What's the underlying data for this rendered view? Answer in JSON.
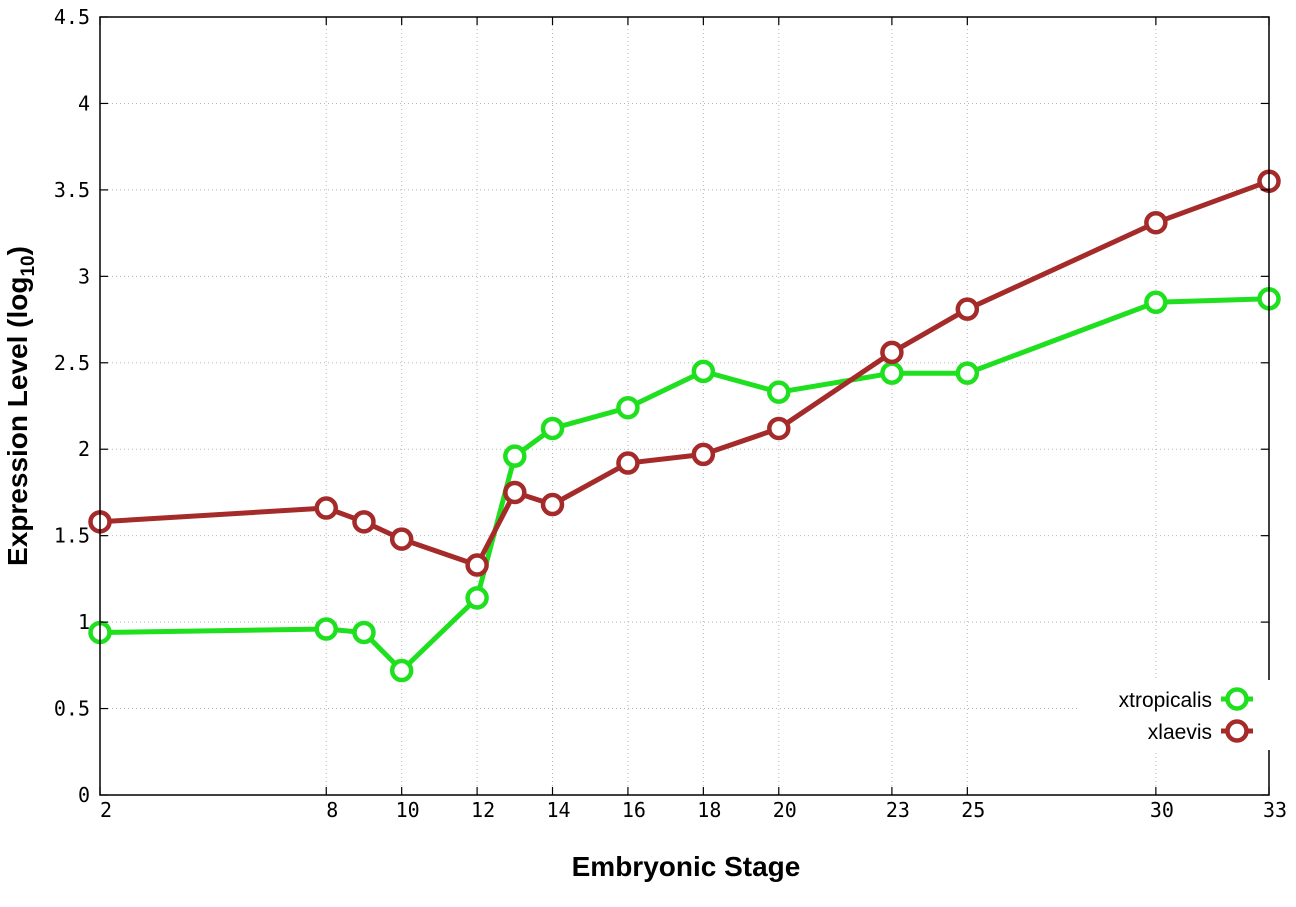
{
  "chart_data": {
    "type": "line",
    "title": "",
    "xlabel": "Embryonic Stage",
    "ylabel": "Expression Level (log",
    "ylabel_subscript": "10",
    "ylabel_suffix": ")",
    "x": [
      2,
      8,
      9,
      10,
      12,
      13,
      14,
      16,
      18,
      20,
      23,
      25,
      30,
      33
    ],
    "x_tick_labels": [
      "2",
      "8",
      "10",
      "12",
      "14",
      "16",
      "18",
      "20",
      "23",
      "25",
      "30",
      "33"
    ],
    "x_tick_values": [
      2,
      8,
      10,
      12,
      14,
      16,
      18,
      20,
      23,
      25,
      30,
      33
    ],
    "xlim": [
      2,
      33
    ],
    "y_tick_labels": [
      "0",
      "0.5",
      "1",
      "1.5",
      "2",
      "2.5",
      "3",
      "3.5",
      "4",
      "4.5"
    ],
    "y_tick_values": [
      0,
      0.5,
      1,
      1.5,
      2,
      2.5,
      3,
      3.5,
      4,
      4.5
    ],
    "ylim": [
      0,
      4.5
    ],
    "grid": true,
    "legend_position": "bottom-right",
    "series": [
      {
        "name": "xtropicalis",
        "color": "#1fe01f",
        "values": [
          0.94,
          0.96,
          0.94,
          0.72,
          1.14,
          1.96,
          2.12,
          2.24,
          2.45,
          2.33,
          2.44,
          2.44,
          2.85,
          2.87
        ]
      },
      {
        "name": "xlaevis",
        "color": "#a52a2a",
        "values": [
          1.58,
          1.66,
          1.58,
          1.48,
          1.33,
          1.75,
          1.68,
          1.92,
          1.97,
          2.12,
          2.56,
          2.81,
          3.31,
          3.55
        ]
      }
    ]
  }
}
